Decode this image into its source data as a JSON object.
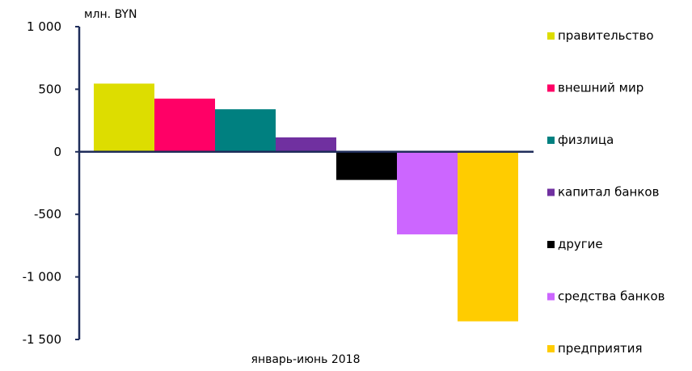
{
  "chart_data": {
    "type": "bar",
    "categories": [
      "январь-июнь 2018"
    ],
    "unit_label": "млн. BYN",
    "ylim": [
      -1500,
      1000
    ],
    "yticks": [
      1000,
      500,
      0,
      -500,
      -1000,
      -1500
    ],
    "ytick_labels": [
      "1 000",
      "500",
      "0",
      "-500",
      "-1 000",
      "-1 500"
    ],
    "legend_position": "right",
    "grid": false,
    "series": [
      {
        "name": "правительство",
        "values": [
          545
        ],
        "color": "#DDDD00"
      },
      {
        "name": "внешний мир",
        "values": [
          425
        ],
        "color": "#FF0066"
      },
      {
        "name": "физлица",
        "values": [
          340
        ],
        "color": "#008080"
      },
      {
        "name": "капитал банков",
        "values": [
          115
        ],
        "color": "#7030A0"
      },
      {
        "name": "другие",
        "values": [
          -225
        ],
        "color": "#000000"
      },
      {
        "name": "средства банков",
        "values": [
          -660
        ],
        "color": "#CC66FF"
      },
      {
        "name": "предприятия",
        "values": [
          -1355
        ],
        "color": "#FFCC00"
      }
    ],
    "axis_color": "#1F2D5A"
  }
}
